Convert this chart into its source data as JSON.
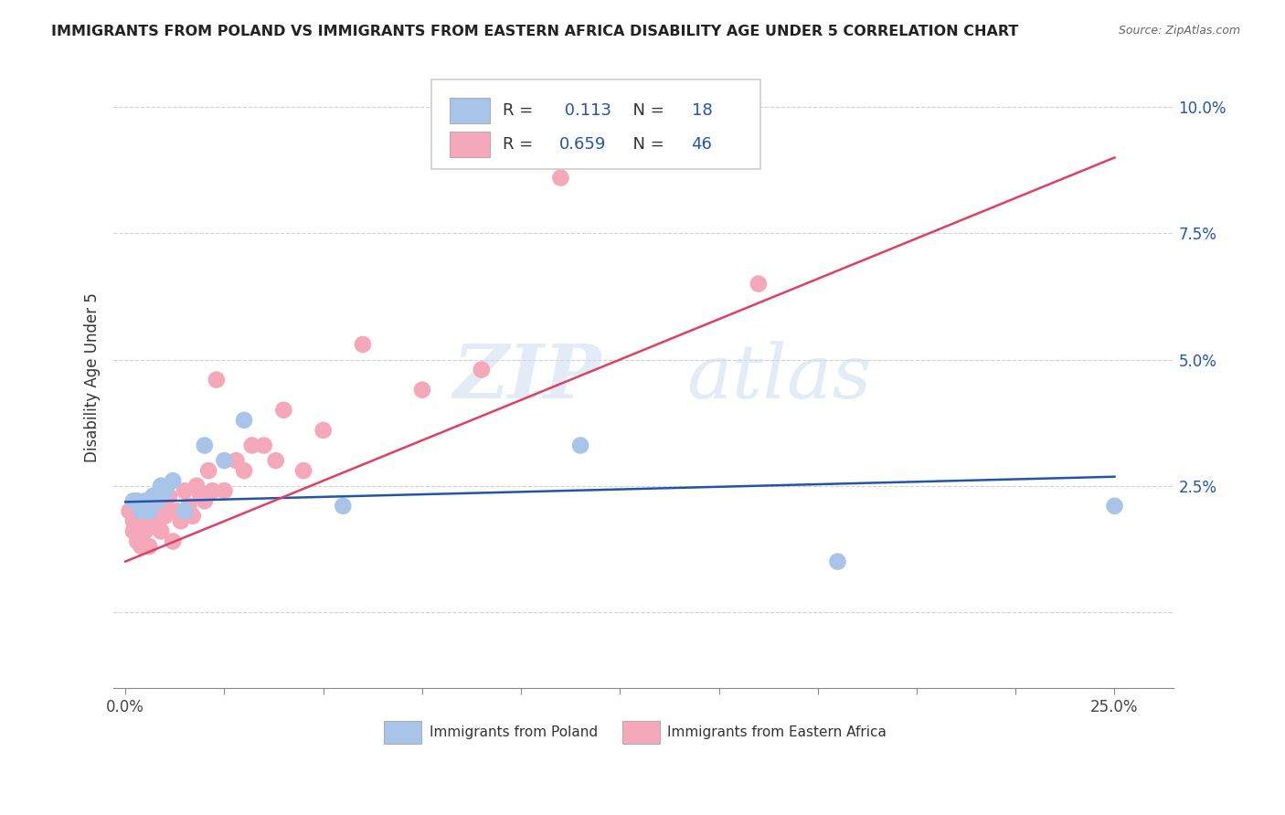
{
  "title": "IMMIGRANTS FROM POLAND VS IMMIGRANTS FROM EASTERN AFRICA DISABILITY AGE UNDER 5 CORRELATION CHART",
  "source": "Source: ZipAtlas.com",
  "ylabel": "Disability Age Under 5",
  "poland_R": 0.113,
  "poland_N": 18,
  "africa_R": 0.659,
  "africa_N": 46,
  "poland_color": "#a8c4e8",
  "africa_color": "#f4a8ba",
  "poland_line_color": "#2255aa",
  "africa_line_color": "#e04060",
  "poland_x": [
    0.002,
    0.003,
    0.004,
    0.005,
    0.006,
    0.007,
    0.008,
    0.009,
    0.01,
    0.012,
    0.015,
    0.02,
    0.025,
    0.03,
    0.055,
    0.115,
    0.18,
    0.25
  ],
  "poland_y": [
    0.022,
    0.022,
    0.02,
    0.022,
    0.02,
    0.023,
    0.022,
    0.025,
    0.024,
    0.026,
    0.02,
    0.033,
    0.03,
    0.038,
    0.021,
    0.033,
    0.01,
    0.021
  ],
  "africa_x": [
    0.001,
    0.002,
    0.002,
    0.003,
    0.003,
    0.004,
    0.004,
    0.005,
    0.005,
    0.006,
    0.006,
    0.007,
    0.007,
    0.008,
    0.008,
    0.009,
    0.009,
    0.01,
    0.01,
    0.011,
    0.012,
    0.013,
    0.014,
    0.015,
    0.016,
    0.017,
    0.018,
    0.019,
    0.02,
    0.021,
    0.022,
    0.023,
    0.025,
    0.028,
    0.03,
    0.032,
    0.035,
    0.038,
    0.04,
    0.045,
    0.05,
    0.06,
    0.075,
    0.09,
    0.11,
    0.16
  ],
  "africa_y": [
    0.02,
    0.018,
    0.016,
    0.016,
    0.014,
    0.017,
    0.013,
    0.02,
    0.016,
    0.013,
    0.019,
    0.021,
    0.017,
    0.023,
    0.018,
    0.016,
    0.022,
    0.019,
    0.021,
    0.023,
    0.014,
    0.02,
    0.018,
    0.024,
    0.021,
    0.019,
    0.025,
    0.023,
    0.022,
    0.028,
    0.024,
    0.046,
    0.024,
    0.03,
    0.028,
    0.033,
    0.033,
    0.03,
    0.04,
    0.028,
    0.036,
    0.053,
    0.044,
    0.048,
    0.086,
    0.065
  ],
  "xlim": [
    -0.003,
    0.265
  ],
  "ylim": [
    -0.015,
    0.108
  ],
  "xtick_minor": [
    0.0,
    0.025,
    0.05,
    0.075,
    0.1,
    0.125,
    0.15,
    0.175,
    0.2,
    0.225,
    0.25
  ],
  "ytick_values": [
    0.0,
    0.025,
    0.05,
    0.075,
    0.1
  ],
  "poland_slope": 0.02,
  "poland_intercept": 0.0218,
  "africa_slope": 0.32,
  "africa_intercept": 0.01,
  "watermark_zip": "ZIP",
  "watermark_atlas": "atlas",
  "background_color": "#ffffff",
  "legend_poland_label": "Immigrants from Poland",
  "legend_africa_label": "Immigrants from Eastern Africa",
  "legend_text_color": "#2255aa",
  "grid_color": "#cccccc",
  "title_color": "#222222",
  "ylabel_color": "#333333",
  "ytick_color": "#2255aa"
}
